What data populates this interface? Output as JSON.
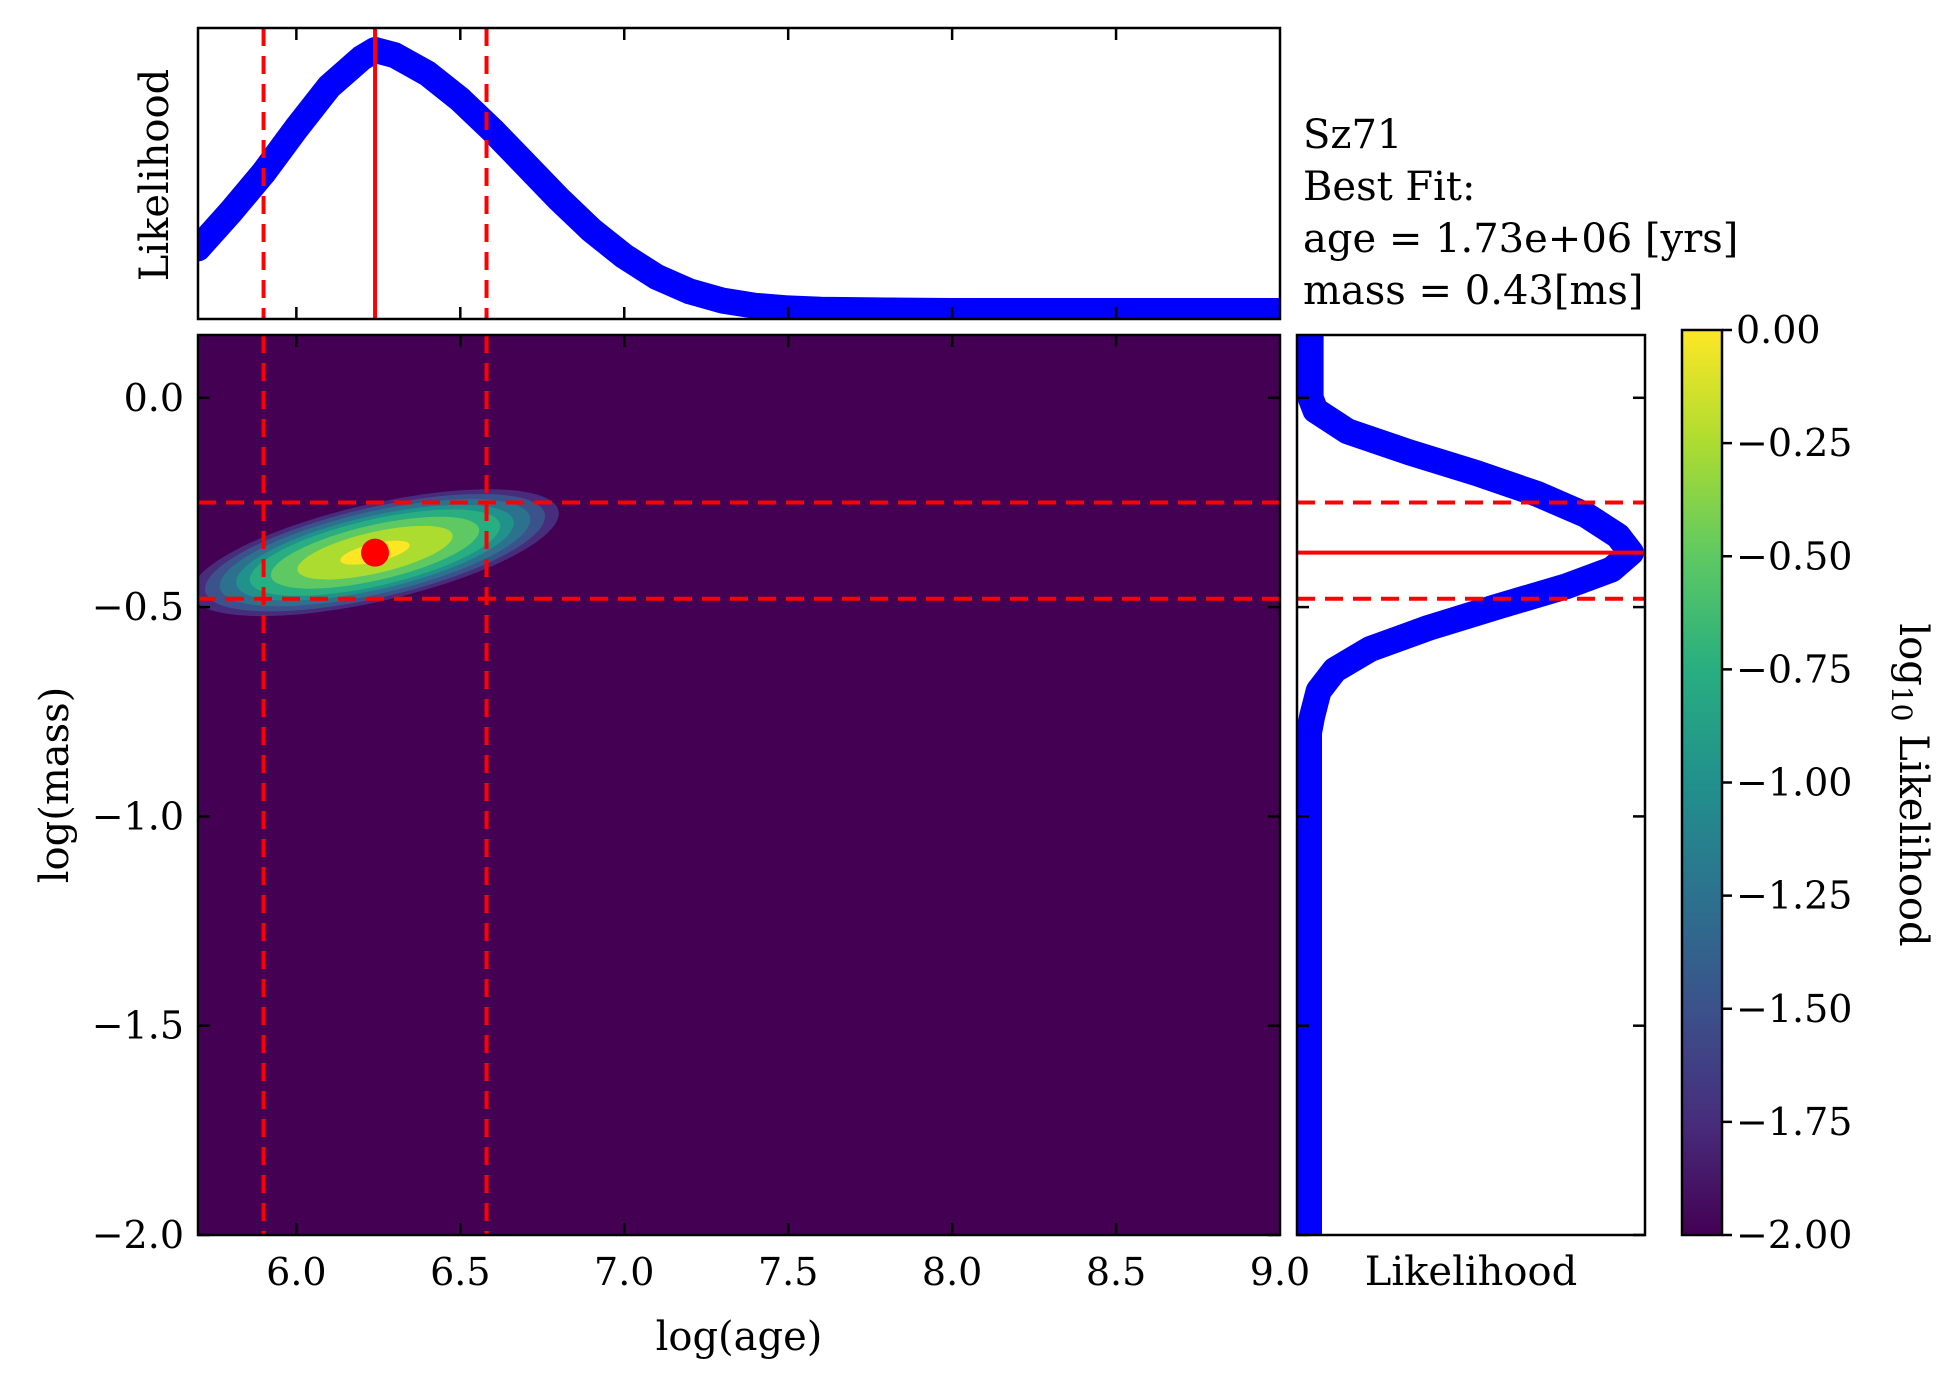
{
  "chart_data": {
    "type": "heatmap",
    "object_name": "Sz71",
    "annotation": {
      "title": "Sz71",
      "line1": "Best Fit:",
      "line2": "age = 1.73e+06 [yrs]",
      "line3": "mass = 0.43[ms]"
    },
    "main": {
      "xlabel": "log(age)",
      "ylabel": "log(mass)",
      "xlim": [
        5.7,
        9.0
      ],
      "ylim": [
        -2.0,
        0.15
      ],
      "xticks": [
        6.0,
        6.5,
        7.0,
        7.5,
        8.0,
        8.5,
        9.0
      ],
      "xtick_labels": [
        "6.0",
        "6.5",
        "7.0",
        "7.5",
        "8.0",
        "8.5",
        "9.0"
      ],
      "yticks": [
        0.0,
        -0.5,
        -1.0,
        -1.5,
        -2.0
      ],
      "ytick_labels": [
        "0.0",
        "−0.5",
        "−1.0",
        "−1.5",
        "−2.0"
      ],
      "best_fit_point": {
        "x": 6.24,
        "y": -0.37
      },
      "age_interval": [
        5.9,
        6.58
      ],
      "mass_interval": [
        -0.48,
        -0.25
      ],
      "likelihood_blob": {
        "center": [
          6.24,
          -0.37
        ],
        "tilt_slope": 0.18,
        "sigma_age": 0.42,
        "sigma_mass_perp": 0.085,
        "edge_log10": -2.0
      }
    },
    "top_marginal": {
      "ylabel": "Likelihood",
      "peak_x": 6.24,
      "age_values": [
        5.7,
        5.8,
        5.9,
        6.0,
        6.1,
        6.2,
        6.24,
        6.3,
        6.4,
        6.5,
        6.6,
        6.7,
        6.8,
        6.9,
        7.0,
        7.1,
        7.2,
        7.3,
        7.4,
        7.5,
        7.6,
        7.8,
        8.0,
        8.5,
        9.0
      ],
      "likelihood": [
        0.24,
        0.38,
        0.53,
        0.7,
        0.86,
        0.97,
        1.0,
        0.98,
        0.91,
        0.81,
        0.69,
        0.56,
        0.43,
        0.31,
        0.21,
        0.13,
        0.075,
        0.04,
        0.02,
        0.01,
        0.005,
        0.002,
        0.0,
        0.0,
        0.0
      ],
      "color": "#0000ff"
    },
    "right_marginal": {
      "xlabel": "Likelihood",
      "peak_y": -0.37,
      "mass_values": [
        0.15,
        0.0,
        -0.03,
        -0.08,
        -0.13,
        -0.18,
        -0.23,
        -0.28,
        -0.33,
        -0.37,
        -0.41,
        -0.45,
        -0.5,
        -0.55,
        -0.6,
        -0.65,
        -0.7,
        -0.76,
        -0.8,
        -1.0,
        -1.5,
        -2.0
      ],
      "likelihood": [
        0.005,
        0.005,
        0.02,
        0.12,
        0.31,
        0.52,
        0.71,
        0.86,
        0.96,
        1.0,
        0.94,
        0.8,
        0.58,
        0.37,
        0.19,
        0.08,
        0.03,
        0.01,
        0.0,
        0.0,
        0.0,
        0.0
      ],
      "color": "#0000ff"
    },
    "colorbar": {
      "label_prefix": "log",
      "label_sub": "10",
      "label_suffix": " Likelihood",
      "range": [
        -2.0,
        0.0
      ],
      "ticks": [
        0.0,
        -0.25,
        -0.5,
        -0.75,
        -1.0,
        -1.25,
        -1.5,
        -1.75,
        -2.0
      ],
      "tick_labels": [
        "0.00",
        "−0.25",
        "−0.50",
        "−0.75",
        "−1.00",
        "−1.25",
        "−1.50",
        "−1.75",
        "−2.00"
      ],
      "colormap": "viridis"
    },
    "colors": {
      "marginal_curve": "#0000ff",
      "interval_lines": "#ff0000",
      "best_fit": "#ff0000",
      "background_min": "#440154"
    }
  }
}
